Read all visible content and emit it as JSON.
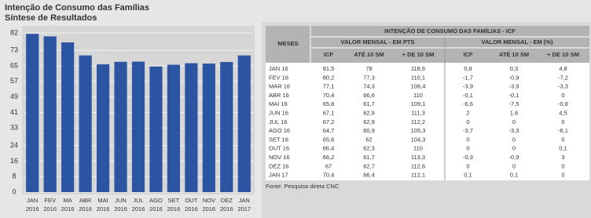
{
  "chart_data": {
    "type": "bar",
    "title": "Intenção de Consumo das Famílias",
    "subtitle": "Síntese de Resultados",
    "categories": [
      [
        "JAN",
        "2016"
      ],
      [
        "FEV",
        "2016"
      ],
      [
        "MA",
        "2016"
      ],
      [
        "ABR",
        "2016"
      ],
      [
        "MAI",
        "2016"
      ],
      [
        "JUN",
        "2016"
      ],
      [
        "JUL",
        "2016"
      ],
      [
        "AGO",
        "2016"
      ],
      [
        "SET",
        "2016"
      ],
      [
        "OUT",
        "2016"
      ],
      [
        "NOV",
        "2016"
      ],
      [
        "DEZ",
        "2016"
      ],
      [
        "JAN",
        "2017"
      ]
    ],
    "values": [
      81.5,
      80.2,
      77.1,
      70.4,
      65.8,
      67.1,
      67.2,
      64.7,
      65.6,
      66.4,
      66.2,
      67,
      70.4
    ],
    "color": "#2b54a3",
    "ylim": [
      0,
      84
    ],
    "yticks": [
      0,
      8,
      16,
      24,
      33,
      41,
      49,
      57,
      65,
      73,
      82
    ],
    "grid": true
  },
  "table": {
    "title": "INTENÇÃO DE CONSUMO DAS FAMÍLIAS - ICF",
    "row_header": "MESES",
    "groups": [
      "VALOR MENSAL - EM PTS",
      "VALOR MENSAL - EM (%)"
    ],
    "columns": [
      "ICF",
      "ATÉ 10 SM",
      "+ DE 10 SM",
      "ICF",
      "ATÉ 10 SM",
      "+ DE 10 SM"
    ],
    "rows": [
      [
        "JAN 16",
        "81,5",
        "78",
        "118,6",
        "0,8",
        "0,3",
        "4,8"
      ],
      [
        "FEV 16",
        "80,2",
        "77,3",
        "110,1",
        "-1,7",
        "-0,9",
        "-7,2"
      ],
      [
        "MAR 16",
        "77,1",
        "74,3",
        "106,4",
        "-3,9",
        "-3,9",
        "-3,3"
      ],
      [
        "ABR 16",
        "70,4",
        "66,6",
        "110",
        "-0,1",
        "-0,1",
        "0"
      ],
      [
        "MAI 16",
        "65,8",
        "61,7",
        "109,1",
        "-6,6",
        "-7,5",
        "-0,8"
      ],
      [
        "JUN 16",
        "67,1",
        "62,9",
        "111,3",
        "2",
        "1,6",
        "4,5"
      ],
      [
        "JUL 16",
        "67,2",
        "62,9",
        "112,2",
        "0",
        "0",
        "0"
      ],
      [
        "AGO 16",
        "64,7",
        "60,9",
        "105,3",
        "-3,7",
        "-3,3",
        "-6,1"
      ],
      [
        "SET 16",
        "65,6",
        "62",
        "104,3",
        "0",
        "0",
        "0"
      ],
      [
        "OUT 16",
        "66,4",
        "62,3",
        "110",
        "0",
        "0",
        "0,1"
      ],
      [
        "NOV 16",
        "66,2",
        "61,7",
        "113,3",
        "-0,3",
        "-0,9",
        "3"
      ],
      [
        "DEZ 16",
        "67",
        "62,7",
        "112,6",
        "0",
        "0",
        "0"
      ],
      [
        "JAN 17",
        "70,4",
        "66,4",
        "112,1",
        "0,1",
        "0,1",
        "0"
      ]
    ],
    "source": "Fonte: Pesquisa direta CNC"
  }
}
